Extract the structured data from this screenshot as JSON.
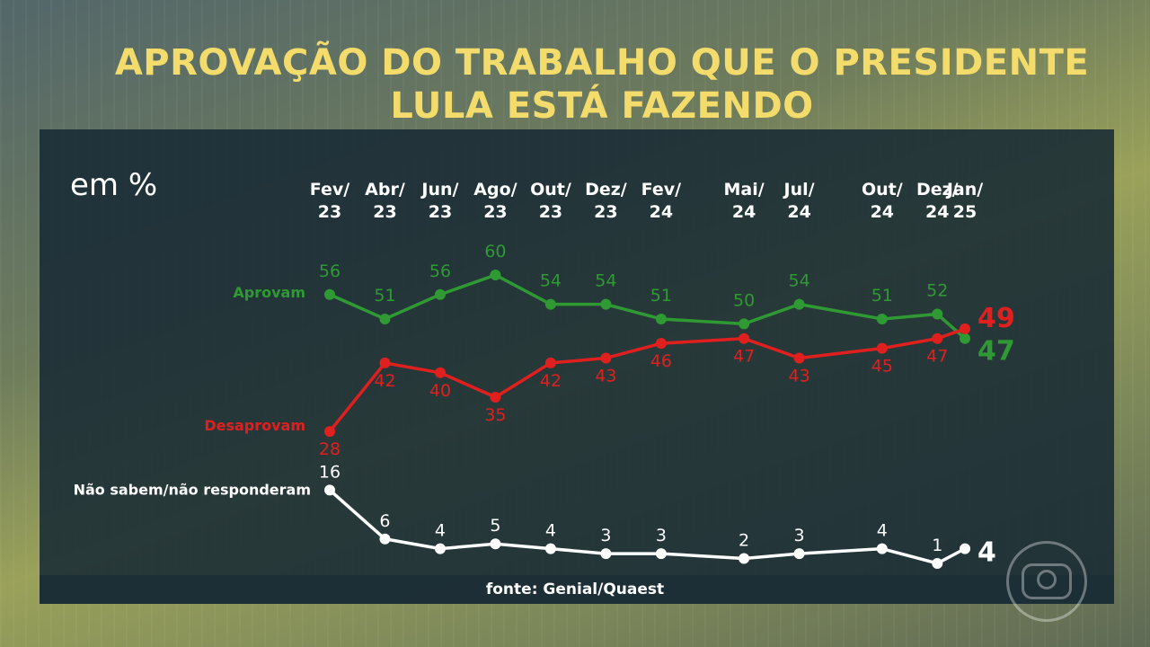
{
  "title_line1": "APROVAÇÃO DO TRABALHO QUE O PRESIDENTE",
  "title_line2": "LULA ESTÁ FAZENDO",
  "unit": "em %",
  "source": "fonte: Genial/Quaest",
  "chart_data": {
    "type": "line",
    "categories": [
      [
        "Fev/",
        "23"
      ],
      [
        "Abr/",
        "23"
      ],
      [
        "Jun/",
        "23"
      ],
      [
        "Ago/",
        "23"
      ],
      [
        "Out/",
        "23"
      ],
      [
        "Dez/",
        "23"
      ],
      [
        "Fev/",
        "24"
      ],
      [
        "Mai/",
        "24"
      ],
      [
        "Jul/",
        "24"
      ],
      [
        "Out/",
        "24"
      ],
      [
        "Dez/",
        "24"
      ],
      [
        "Jan/",
        "25"
      ]
    ],
    "months_since_start": [
      0,
      2,
      4,
      6,
      8,
      10,
      12,
      15,
      17,
      20,
      22,
      23
    ],
    "series": [
      {
        "name": "Aprovam",
        "color": "#2f9a33",
        "values": [
          56,
          51,
          56,
          60,
          54,
          54,
          51,
          50,
          54,
          51,
          52,
          47
        ]
      },
      {
        "name": "Desaprovam",
        "color": "#e0201e",
        "values": [
          28,
          42,
          40,
          35,
          42,
          43,
          46,
          47,
          43,
          45,
          47,
          49
        ]
      },
      {
        "name": "Não sabem/não responderam",
        "color": "#ffffff",
        "values": [
          16,
          6,
          4,
          5,
          4,
          3,
          3,
          2,
          3,
          4,
          1,
          4
        ]
      }
    ],
    "colors": {
      "title": "#f3dc6b",
      "panel": "#182a34"
    }
  }
}
